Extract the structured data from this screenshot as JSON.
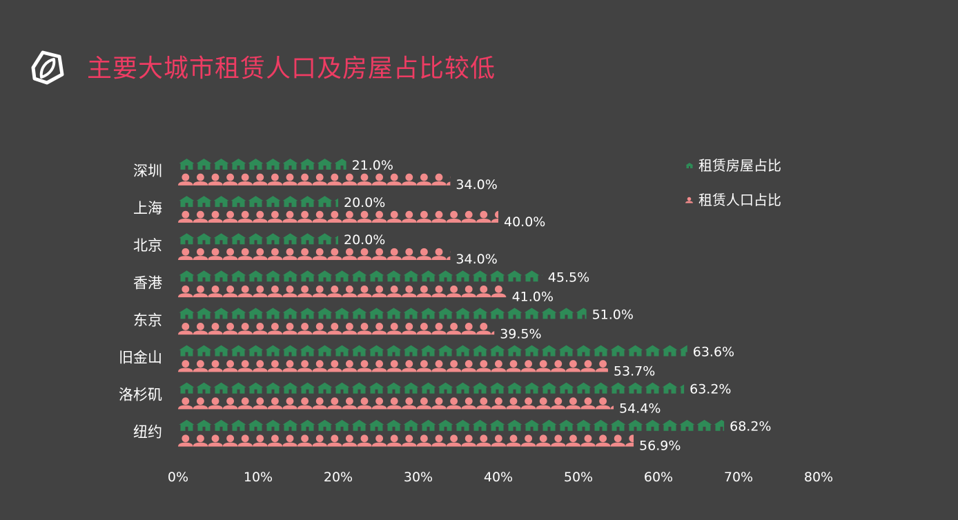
{
  "title": "主要大城市租赁人口及房屋占比较低",
  "colors": {
    "background": "#424242",
    "title": "#ee3c63",
    "housing": "#2e8b57",
    "population": "#f28b8b",
    "text": "#ffffff"
  },
  "icons": {
    "logo": "leaf-house-logo-icon",
    "housing": "house-icon",
    "population": "person-icon"
  },
  "chart_data": {
    "type": "bar",
    "orientation": "horizontal",
    "pictorial": true,
    "categories": [
      "深圳",
      "上海",
      "北京",
      "香港",
      "东京",
      "旧金山",
      "洛杉矶",
      "纽约"
    ],
    "series": [
      {
        "name": "租赁房屋占比",
        "values": [
          21.0,
          20.0,
          20.0,
          45.5,
          51.0,
          63.6,
          63.2,
          68.2
        ],
        "labels": [
          "21.0%",
          "20.0%",
          "20.0%",
          "45.5%",
          "51.0%",
          "63.6%",
          "63.2%",
          "68.2%"
        ],
        "color": "#2e8b57",
        "icon": "house-icon"
      },
      {
        "name": "租赁人口占比",
        "values": [
          34.0,
          40.0,
          34.0,
          41.0,
          39.5,
          53.7,
          54.4,
          56.9
        ],
        "labels": [
          "34.0%",
          "40.0%",
          "34.0%",
          "41.0%",
          "39.5%",
          "53.7%",
          "54.4%",
          "56.9%"
        ],
        "color": "#f28b8b",
        "icon": "person-icon"
      }
    ],
    "xlim": [
      0,
      80
    ],
    "xticks": [
      "0%",
      "10%",
      "20%",
      "30%",
      "40%",
      "50%",
      "60%",
      "70%",
      "80%"
    ],
    "xlabel": "",
    "ylabel": "",
    "legend_position": "top-right",
    "grid": false
  }
}
